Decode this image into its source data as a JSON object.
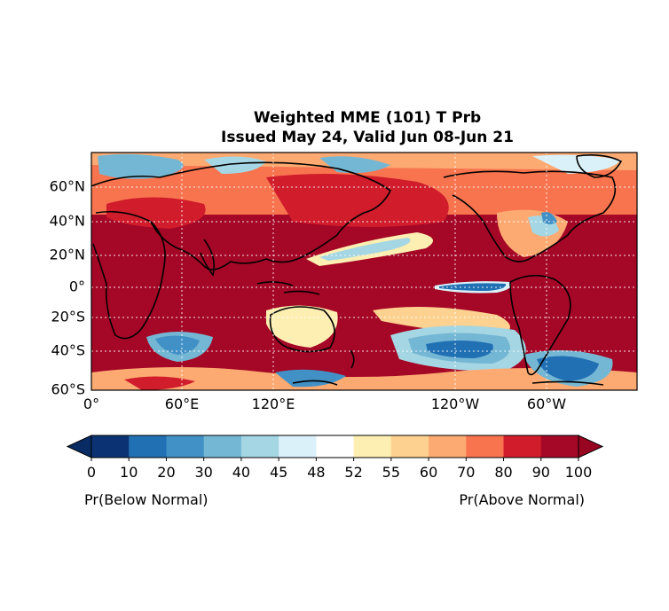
{
  "title_line1": "Weighted MME (101) T Prb",
  "title_line2": "Issued May 24, Valid Jun 08-Jun 21",
  "map": {
    "lat_ticks": [
      "60°N",
      "40°N",
      "20°N",
      "0°",
      "20°S",
      "40°S",
      "60°S"
    ],
    "lon_ticks": [
      "0°",
      "60°E",
      "120°E",
      "120°W",
      "60°W"
    ]
  },
  "colorbar": {
    "ticks": [
      "0",
      "10",
      "20",
      "30",
      "40",
      "45",
      "48",
      "52",
      "55",
      "60",
      "70",
      "80",
      "90",
      "100"
    ],
    "colors": [
      "#0b3373",
      "#2170b4",
      "#4191c6",
      "#74b7d4",
      "#a5d6e3",
      "#dbf1fa",
      "#ffffff",
      "#fdeeb2",
      "#fdd18f",
      "#fcaa72",
      "#f8744f",
      "#d01c2b",
      "#a50726"
    ],
    "extend_low": "#082b63",
    "extend_high": "#980521",
    "label_left": "Pr(Below Normal)",
    "label_right": "Pr(Above Normal)"
  }
}
